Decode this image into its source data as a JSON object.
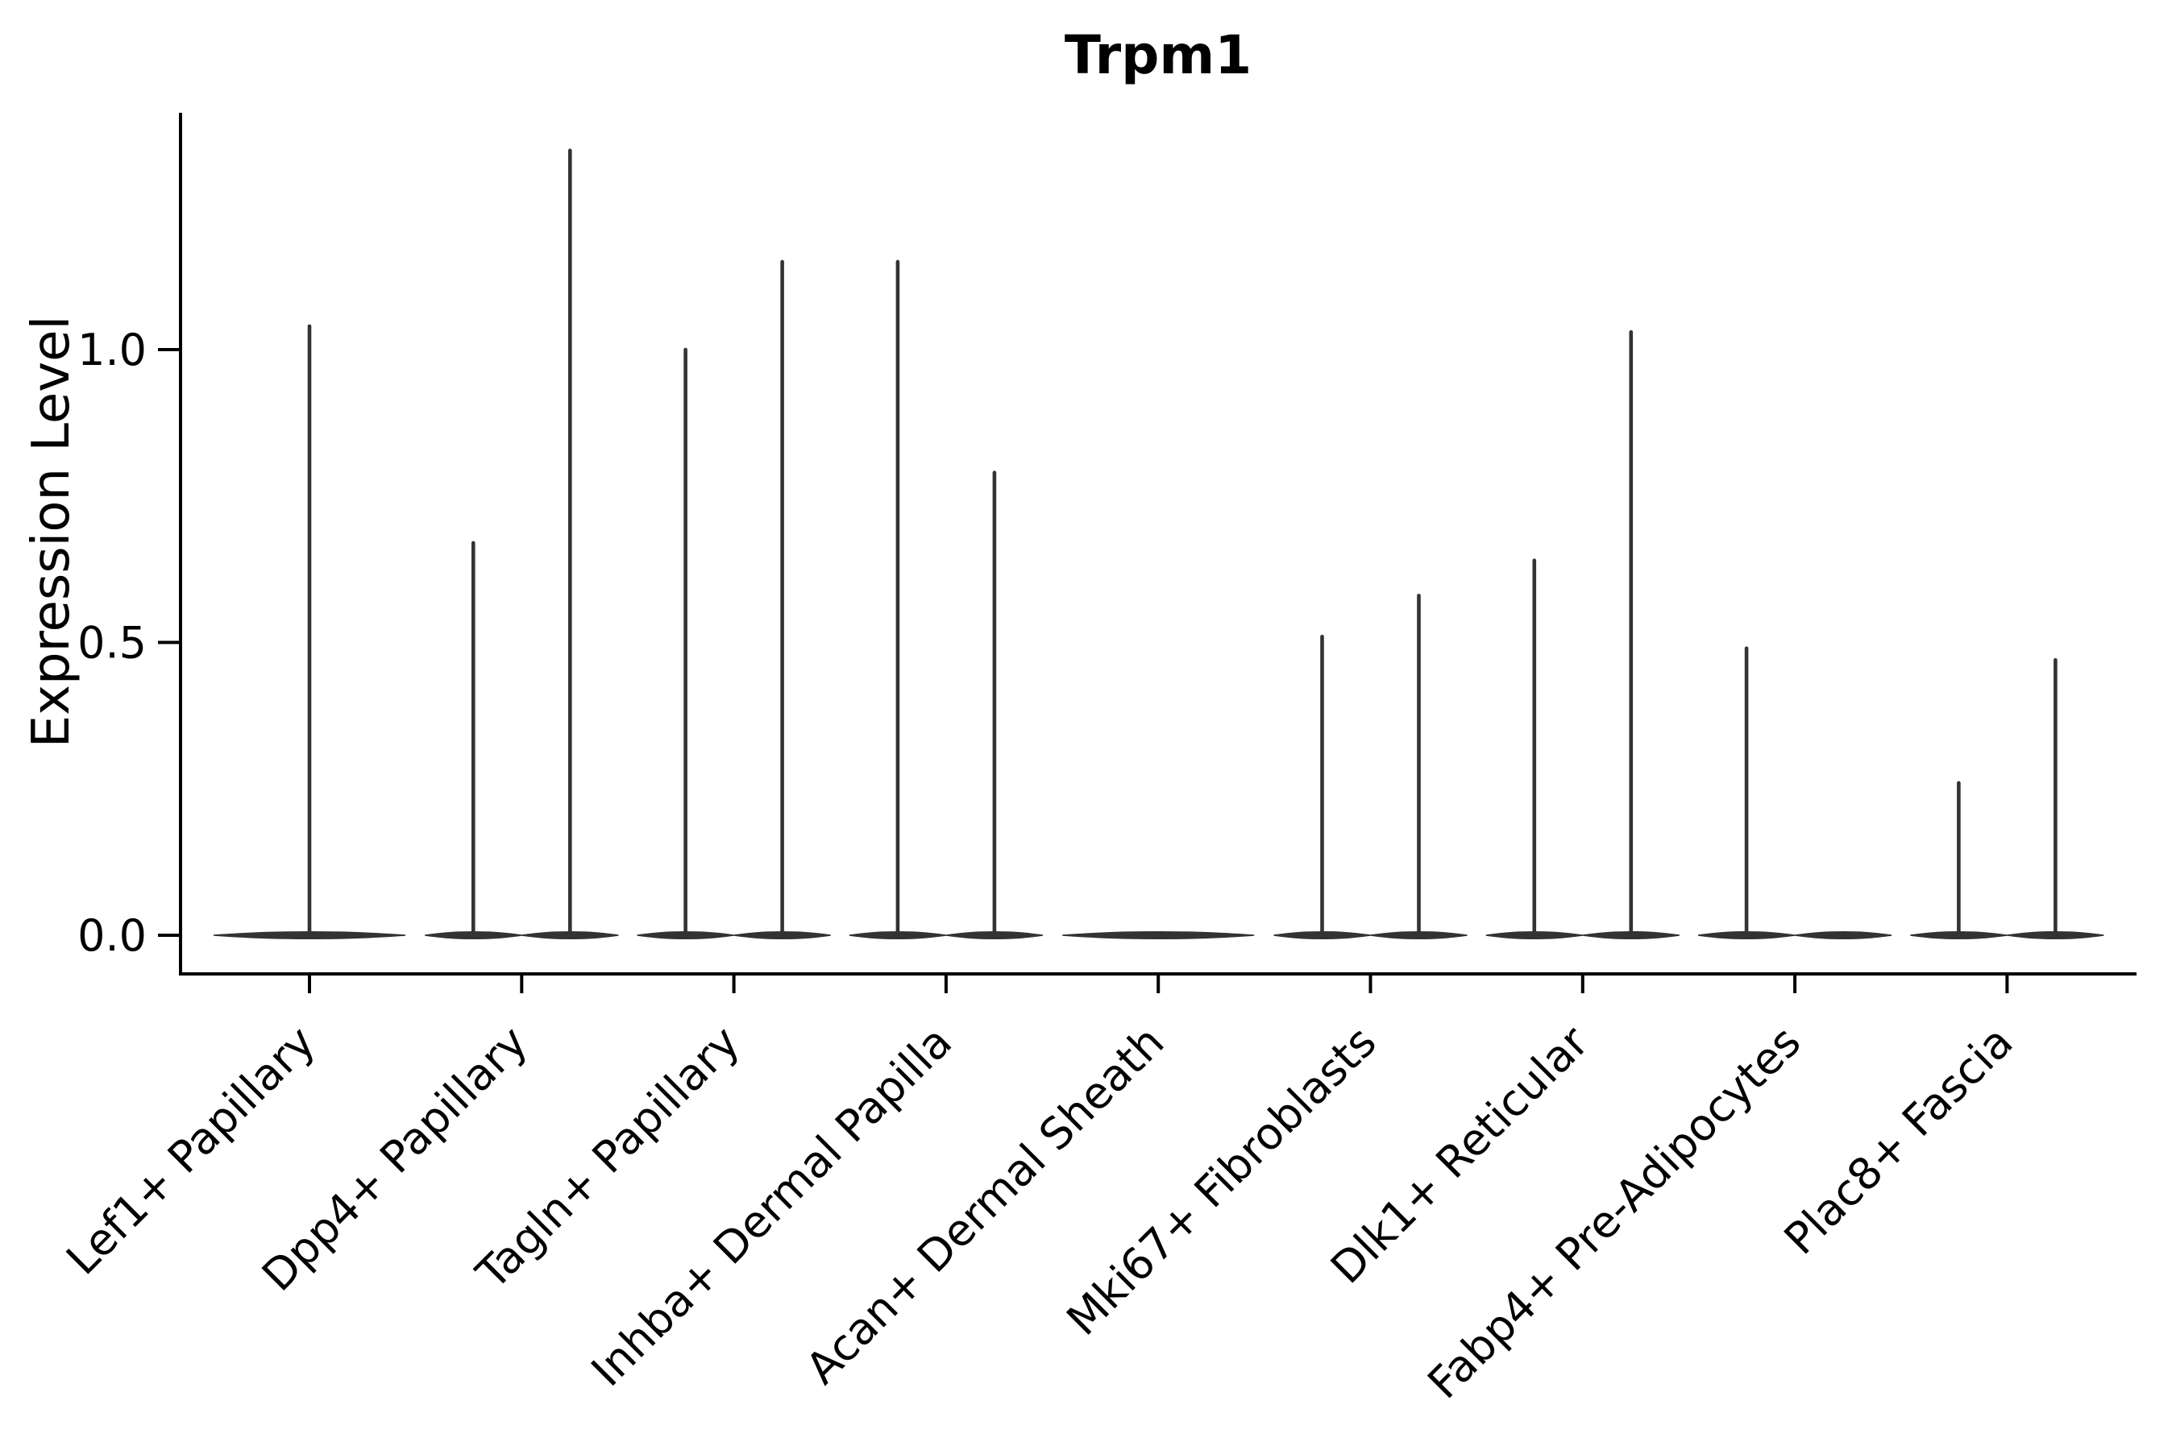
{
  "figure": {
    "background": "#ffffff"
  },
  "chart_data": {
    "type": "violin",
    "title": "Trpm1",
    "ylabel": "Expression Level",
    "xlabel": "",
    "ylim": [
      -0.06,
      1.41
    ],
    "grid": false,
    "legend": null,
    "violin_color": "#333333",
    "axis_color": "#000000",
    "yticks": [
      {
        "label": "0.0",
        "value": 0.0
      },
      {
        "label": "0.5",
        "value": 0.5
      },
      {
        "label": "1.0",
        "value": 1.0
      }
    ],
    "xtick_rotation": 45,
    "categories": [
      {
        "label": "Lef1+ Papillary",
        "violins": [
          {
            "pos": "center",
            "max": 1.04
          }
        ]
      },
      {
        "label": "Dpp4+ Papillary",
        "violins": [
          {
            "pos": "left",
            "max": 0.67
          },
          {
            "pos": "right",
            "max": 1.34
          }
        ]
      },
      {
        "label": "Tagln+ Papillary",
        "violins": [
          {
            "pos": "left",
            "max": 1.0
          },
          {
            "pos": "right",
            "max": 1.15
          }
        ]
      },
      {
        "label": "Inhba+ Dermal Papilla",
        "violins": [
          {
            "pos": "left",
            "max": 1.15
          },
          {
            "pos": "right",
            "max": 0.79
          }
        ]
      },
      {
        "label": "Acan+ Dermal Sheath",
        "violins": [
          {
            "pos": "center",
            "max": 0
          }
        ]
      },
      {
        "label": "Mki67+ Fibroblasts",
        "violins": [
          {
            "pos": "left",
            "max": 0.51
          },
          {
            "pos": "right",
            "max": 0.58
          }
        ]
      },
      {
        "label": "Dlk1+ Reticular",
        "violins": [
          {
            "pos": "left",
            "max": 0.64
          },
          {
            "pos": "right",
            "max": 1.03
          }
        ]
      },
      {
        "label": "Fabp4+ Pre-Adipocytes",
        "violins": [
          {
            "pos": "left",
            "max": 0.49
          },
          {
            "pos": "right",
            "max": 0
          }
        ]
      },
      {
        "label": "Plac8+ Fascia",
        "violins": [
          {
            "pos": "left",
            "max": 0.26
          },
          {
            "pos": "right",
            "max": 0.47
          }
        ]
      }
    ]
  }
}
